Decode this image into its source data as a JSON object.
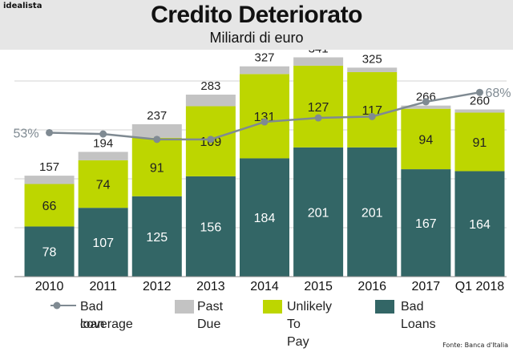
{
  "brand": "idealista",
  "source": "Fonte: Banca d'Italia",
  "chart_data": {
    "type": "bar",
    "stacked": true,
    "title": "Credito Deteriorato",
    "subtitle": "Miliardi di euro",
    "categories": [
      "2010",
      "2011",
      "2012",
      "2013",
      "2014",
      "2015",
      "2016",
      "2017",
      "Q1 2018"
    ],
    "series": [
      {
        "name": "Bad Loans",
        "color": "#336666",
        "values": [
          78,
          107,
          125,
          156,
          184,
          201,
          201,
          167,
          164
        ]
      },
      {
        "name": "Unlikely To Pay",
        "color": "#bdd600",
        "values": [
          66,
          74,
          91,
          109,
          131,
          127,
          117,
          94,
          91
        ]
      },
      {
        "name": "Past Due",
        "color": "#c3c3c3",
        "values": [
          13,
          13,
          21,
          18,
          12,
          13,
          7,
          5,
          5
        ]
      }
    ],
    "totals": [
      157,
      194,
      237,
      283,
      327,
      341,
      325,
      266,
      260
    ],
    "line": {
      "name": "Bad loan coverage",
      "color": "#7f8a92",
      "values": [
        53,
        52.5,
        50.5,
        50.5,
        57,
        58.5,
        59,
        64.5,
        68
      ],
      "labels": [
        "53%",
        "",
        "",
        "",
        "",
        "",
        "",
        "",
        "68%"
      ]
    },
    "ylim": [
      0,
      350
    ],
    "grid": true,
    "legend_position": "bottom"
  },
  "legend": [
    {
      "line1": "Bad loan",
      "line2": "coverage"
    },
    {
      "line1": "Past",
      "line2": "Due"
    },
    {
      "line1": "Unlikely",
      "line2": "To Pay"
    },
    {
      "line1": "Bad",
      "line2": "Loans"
    }
  ]
}
